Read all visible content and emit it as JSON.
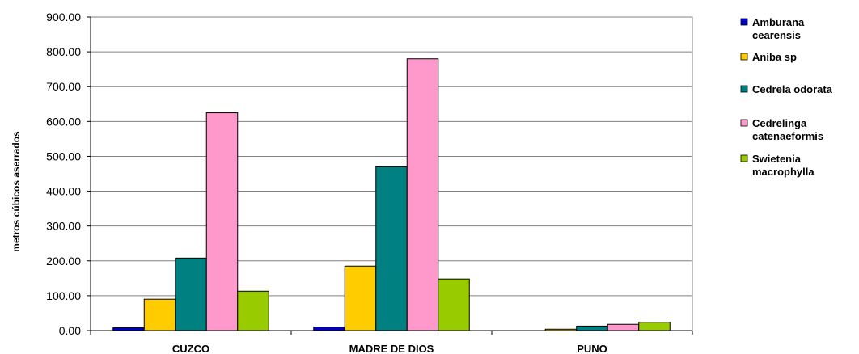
{
  "chart_data": {
    "type": "bar",
    "title": "",
    "xlabel": "",
    "ylabel": "metros cúbicos aserrados",
    "ylim": [
      0,
      900
    ],
    "yticks": [
      "0.00",
      "100.00",
      "200.00",
      "300.00",
      "400.00",
      "500.00",
      "600.00",
      "700.00",
      "800.00",
      "900.00"
    ],
    "categories": [
      "CUZCO",
      "MADRE DE DIOS",
      "PUNO"
    ],
    "grid": true,
    "legend_position": "right",
    "series": [
      {
        "name": "Amburana cearensis",
        "legend_lines": [
          "Amburana",
          "cearensis"
        ],
        "color": "#0000CC",
        "values": [
          8,
          10,
          0
        ]
      },
      {
        "name": "Aniba sp",
        "legend_lines": [
          "Aniba sp"
        ],
        "color": "#FFCC00",
        "values": [
          90,
          185,
          4
        ]
      },
      {
        "name": "Cedrela odorata",
        "legend_lines": [
          "Cedrela odorata"
        ],
        "color": "#008080",
        "values": [
          208,
          470,
          13
        ]
      },
      {
        "name": "Cedrelinga catenaeformis",
        "legend_lines": [
          "Cedrelinga",
          "catenaeformis"
        ],
        "color": "#FF99CC",
        "values": [
          625,
          780,
          18
        ]
      },
      {
        "name": "Swietenia macrophylla",
        "legend_lines": [
          "Swietenia",
          "macrophylla"
        ],
        "color": "#99CC00",
        "values": [
          113,
          148,
          24
        ]
      }
    ]
  }
}
